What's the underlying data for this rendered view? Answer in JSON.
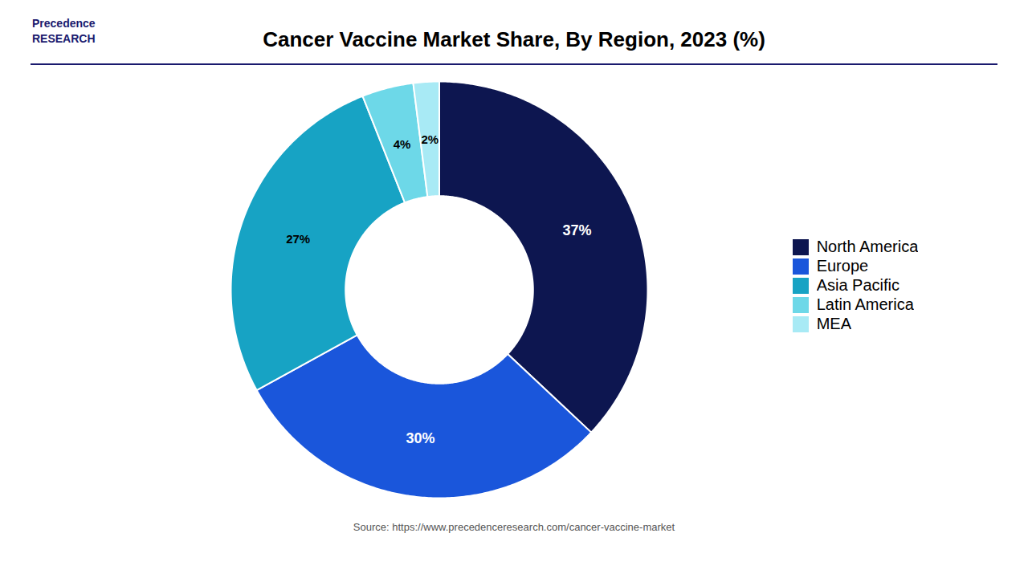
{
  "chart_data": {
    "type": "donut",
    "title": "Cancer Vaccine Market Share, By Region, 2023 (%)",
    "categories": [
      "North America",
      "Europe",
      "Asia Pacific",
      "Latin America",
      "MEA"
    ],
    "values": [
      37,
      30,
      27,
      4,
      2
    ],
    "value_labels": [
      "37%",
      "30%",
      "27%",
      "4%",
      "2%"
    ],
    "colors": [
      "#0d1650",
      "#1a56db",
      "#17a3c4",
      "#6dd8e8",
      "#a8eaf5"
    ],
    "data_labels": true,
    "legend": "right",
    "annotations": [
      "Precedence\nRESEARCH"
    ],
    "source": "Source: https://www.precedenceresearch.com/cancer-vaccine-market"
  }
}
